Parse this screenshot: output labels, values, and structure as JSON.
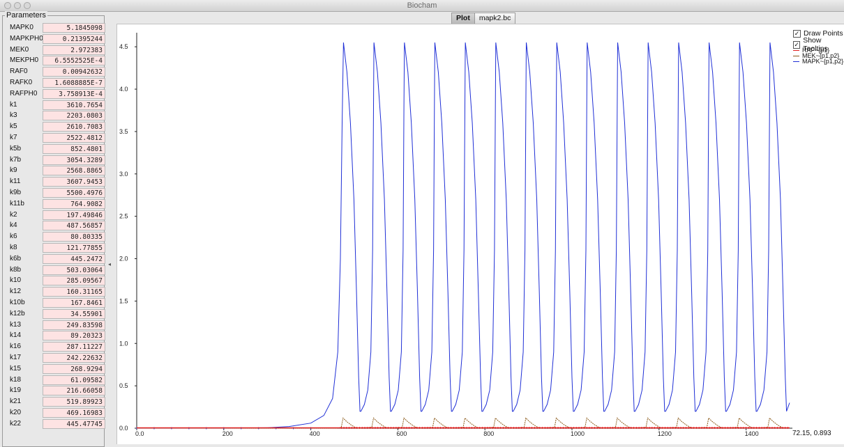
{
  "window": {
    "title": "Biocham"
  },
  "parameters_panel": {
    "title": "Parameters",
    "items": [
      {
        "label": "MAPK0",
        "value": "5.1845098"
      },
      {
        "label": "MAPKPH0",
        "value": "0.21395244"
      },
      {
        "label": "MEK0",
        "value": "2.972383"
      },
      {
        "label": "MEKPH0",
        "value": "6.5552525E-4"
      },
      {
        "label": "RAF0",
        "value": "0.00942632"
      },
      {
        "label": "RAFK0",
        "value": "1.6088885E-7"
      },
      {
        "label": "RAFPH0",
        "value": "3.758913E-4"
      },
      {
        "label": "k1",
        "value": "3610.7654"
      },
      {
        "label": "k3",
        "value": "2203.0803"
      },
      {
        "label": "k5",
        "value": "2610.7083"
      },
      {
        "label": "k7",
        "value": "2522.4812"
      },
      {
        "label": "k5b",
        "value": "852.4801"
      },
      {
        "label": "k7b",
        "value": "3054.3289"
      },
      {
        "label": "k9",
        "value": "2568.8865"
      },
      {
        "label": "k11",
        "value": "3607.9453"
      },
      {
        "label": "k9b",
        "value": "5500.4976"
      },
      {
        "label": "k11b",
        "value": "764.9082"
      },
      {
        "label": "k2",
        "value": "197.49846"
      },
      {
        "label": "k4",
        "value": "487.56857"
      },
      {
        "label": "k6",
        "value": "80.80335"
      },
      {
        "label": "k8",
        "value": "121.77855"
      },
      {
        "label": "k6b",
        "value": "445.2472"
      },
      {
        "label": "k8b",
        "value": "503.03064"
      },
      {
        "label": "k10",
        "value": "285.09567"
      },
      {
        "label": "k12",
        "value": "160.31165"
      },
      {
        "label": "k10b",
        "value": "167.8461"
      },
      {
        "label": "k12b",
        "value": "34.55901"
      },
      {
        "label": "k13",
        "value": "249.83598"
      },
      {
        "label": "k14",
        "value": "89.20323"
      },
      {
        "label": "k16",
        "value": "287.11227"
      },
      {
        "label": "k17",
        "value": "242.22632"
      },
      {
        "label": "k15",
        "value": "268.9294"
      },
      {
        "label": "k18",
        "value": "61.09582"
      },
      {
        "label": "k19",
        "value": "216.66058"
      },
      {
        "label": "k21",
        "value": "519.89923"
      },
      {
        "label": "k20",
        "value": "469.16983"
      },
      {
        "label": "k22",
        "value": "445.47745"
      }
    ]
  },
  "tabs": [
    {
      "label": "Plot",
      "active": true
    },
    {
      "label": "mapk2.bc",
      "active": false
    }
  ],
  "plot_options": [
    {
      "label": "Draw Points",
      "checked": true
    },
    {
      "label": "Show Tooltips",
      "checked": true
    }
  ],
  "coordinates_readout": "72.15, 0.893",
  "chart_data": {
    "type": "line",
    "title": "",
    "xlabel": "",
    "ylabel": "",
    "xlim": [
      0,
      1500
    ],
    "ylim": [
      0,
      4.6
    ],
    "x_ticks": [
      "0.0",
      "200",
      "400",
      "600",
      "800",
      "1000",
      "1200",
      "1400"
    ],
    "y_ticks": [
      "0.0",
      "0.5",
      "1.0",
      "1.5",
      "2.0",
      "2.5",
      "3.0",
      "3.5",
      "4.0",
      "4.5"
    ],
    "legend_position": "top-right",
    "series": [
      {
        "name": "RAF~{p1}",
        "color": "#e02020",
        "description": "near zero throughout",
        "baseline": 0.0
      },
      {
        "name": "MEK~{p1,p2}",
        "color": "#8b5a1a",
        "description": "small sawtooth pulses",
        "peak": 0.12,
        "period": 70,
        "start": 470
      },
      {
        "name": "MAPK~{p1,p2}",
        "color": "#1f2fd6",
        "description": "relaxation oscillations",
        "peak": 4.55,
        "trough": 0.2,
        "period": 70,
        "first_peak": 475
      }
    ]
  }
}
